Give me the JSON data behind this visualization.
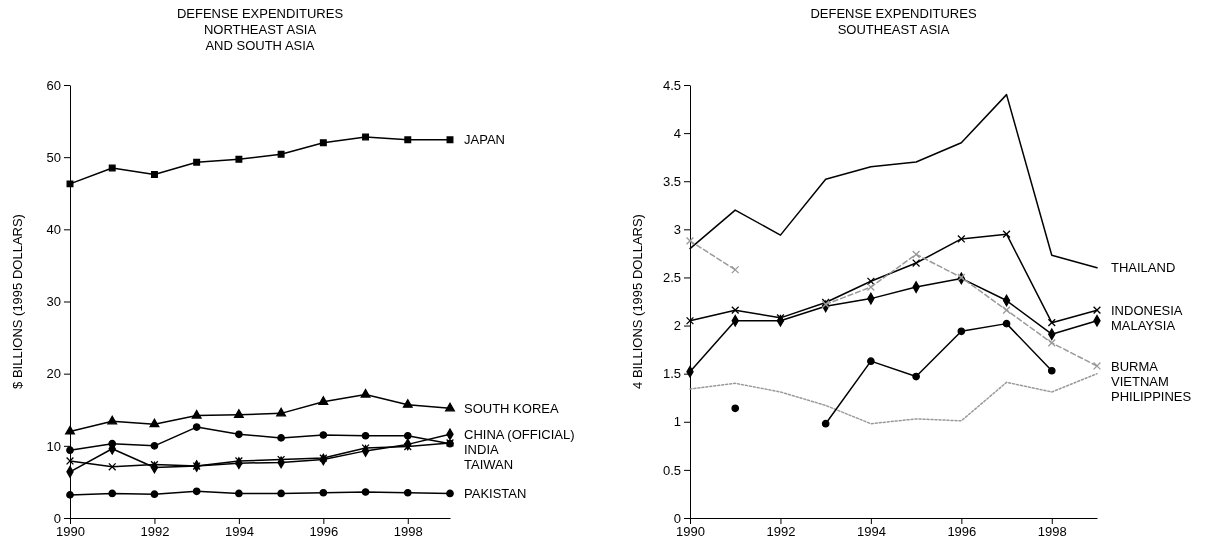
{
  "chart_data": [
    {
      "type": "line",
      "title": "DEFENSE EXPENDITURES\nNORTHEAST ASIA\nAND SOUTH ASIA",
      "ylabel": "$ BILLIONS (1995 DOLLARS)",
      "x": [
        1990,
        1991,
        1992,
        1993,
        1994,
        1995,
        1996,
        1997,
        1998,
        1999
      ],
      "xlim": [
        1990,
        1999
      ],
      "xticks": [
        1990,
        1992,
        1994,
        1996,
        1998
      ],
      "ylim": [
        0,
        60
      ],
      "yticks": [
        0,
        10,
        20,
        30,
        40,
        50,
        60
      ],
      "grid": false,
      "legend": false,
      "series": [
        {
          "name": "JAPAN",
          "color": "#000000",
          "marker": "square",
          "values": [
            46.3,
            48.5,
            47.6,
            49.3,
            49.7,
            50.4,
            52.0,
            52.8,
            52.4,
            52.4
          ]
        },
        {
          "name": "SOUTH KOREA",
          "color": "#000000",
          "marker": "triangle",
          "values": [
            12.0,
            13.4,
            13.0,
            14.2,
            14.3,
            14.5,
            16.1,
            17.1,
            15.7,
            15.2
          ]
        },
        {
          "name": "TAIWAN",
          "color": "#000000",
          "marker": "circle",
          "values": [
            9.4,
            10.3,
            10.0,
            12.6,
            11.6,
            11.1,
            11.5,
            11.4,
            11.4,
            10.3
          ]
        },
        {
          "name": "CHINA (OFFICIAL)",
          "color": "#000000",
          "marker": "diamond",
          "values": [
            6.4,
            9.6,
            7.0,
            7.2,
            7.6,
            7.7,
            8.1,
            9.3,
            10.2,
            11.6
          ]
        },
        {
          "name": "INDIA",
          "color": "#000000",
          "marker": "cross",
          "values": [
            7.9,
            7.1,
            7.4,
            7.2,
            7.9,
            8.1,
            8.3,
            9.7,
            9.9,
            10.4
          ]
        },
        {
          "name": "PAKISTAN",
          "color": "#000000",
          "marker": "circle",
          "values": [
            3.2,
            3.4,
            3.3,
            3.7,
            3.4,
            3.4,
            3.5,
            3.6,
            3.5,
            3.4
          ]
        }
      ]
    },
    {
      "type": "line",
      "title": "DEFENSE EXPENDITURES\nSOUTHEAST ASIA",
      "ylabel": "4 BILLIONS (1995 DOLLARS)",
      "x": [
        1990,
        1991,
        1992,
        1993,
        1994,
        1995,
        1996,
        1997,
        1998,
        1999
      ],
      "xlim": [
        1990,
        1999
      ],
      "xticks": [
        1990,
        1992,
        1994,
        1996,
        1998
      ],
      "ylim": [
        0,
        4.5
      ],
      "yticks": [
        0,
        0.5,
        1,
        1.5,
        2,
        2.5,
        3,
        3.5,
        4,
        4.5
      ],
      "grid": false,
      "legend": false,
      "series": [
        {
          "name": "THAILAND",
          "color": "#000000",
          "marker": "none",
          "values": [
            2.8,
            3.2,
            2.94,
            3.52,
            3.65,
            3.7,
            3.9,
            4.4,
            2.73,
            2.6
          ]
        },
        {
          "name": "INDONESIA",
          "color": "#000000",
          "marker": "cross",
          "values": [
            2.05,
            2.16,
            2.08,
            2.24,
            2.46,
            2.65,
            2.9,
            2.95,
            2.03,
            2.16
          ]
        },
        {
          "name": "MALAYSIA",
          "color": "#000000",
          "marker": "diamond",
          "values": [
            1.52,
            2.05,
            2.05,
            2.2,
            2.28,
            2.4,
            2.49,
            2.26,
            1.91,
            2.05
          ]
        },
        {
          "name": "BURMA",
          "color": "#999999",
          "marker": "cross",
          "line_style": "dashed",
          "values": [
            2.88,
            2.58,
            null,
            2.22,
            2.4,
            2.74,
            2.5,
            2.16,
            1.82,
            1.58
          ]
        },
        {
          "name": "PHILIPPINES",
          "color": "#999999",
          "marker": "none",
          "line_style": "dotted",
          "values": [
            1.34,
            1.4,
            1.31,
            1.17,
            0.98,
            1.03,
            1.01,
            1.41,
            1.31,
            1.5
          ]
        },
        {
          "name": "VIETNAM",
          "color": "#000000",
          "marker": "circle",
          "values": [
            null,
            1.14,
            null,
            0.98,
            1.63,
            1.47,
            1.94,
            2.02,
            1.53,
            null
          ]
        }
      ]
    }
  ]
}
